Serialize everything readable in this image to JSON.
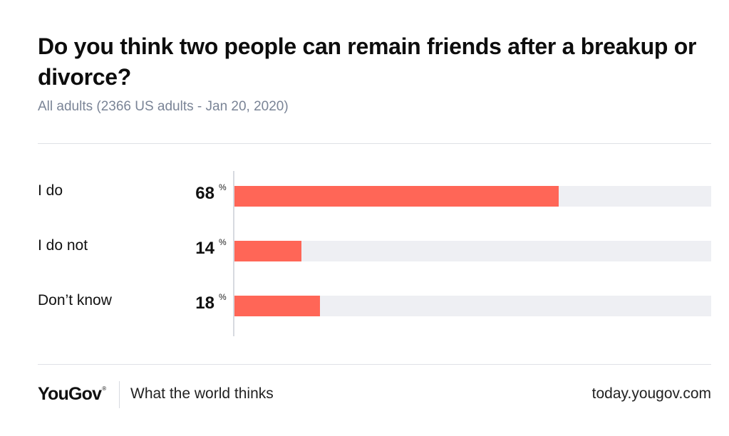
{
  "title": "Do you think two people can remain friends after a breakup or divorce?",
  "subtitle": "All adults (2366 US adults - Jan 20, 2020)",
  "chart_data": {
    "type": "bar",
    "orientation": "horizontal",
    "categories": [
      "I do",
      "I do not",
      "Don’t know"
    ],
    "values": [
      68,
      14,
      18
    ],
    "unit": "%",
    "xlim": [
      0,
      100
    ],
    "bar_color": "#ff6657",
    "track_color": "#eeeff3",
    "grid": false
  },
  "footer": {
    "brand": "YouGov",
    "brand_mark": "®",
    "tagline": "What the world thinks",
    "url": "today.yougov.com"
  }
}
